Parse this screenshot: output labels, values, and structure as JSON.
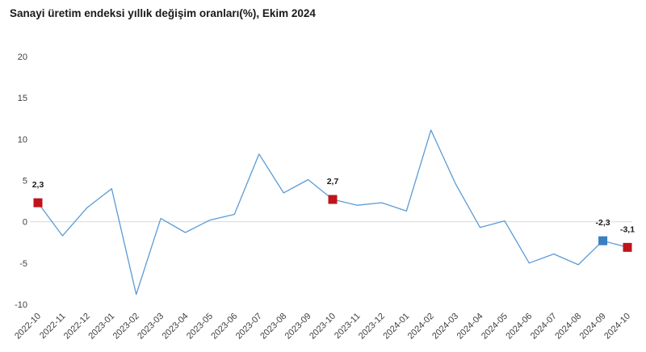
{
  "chart_data": {
    "type": "line",
    "title": "Sanayi üretim endeksi yıllık değişim oranları(%), Ekim 2024",
    "xlabel": "",
    "ylabel": "",
    "ylim": [
      -10,
      20
    ],
    "yticks": [
      -10,
      -5,
      0,
      5,
      10,
      15,
      20
    ],
    "grid": false,
    "legend": "none",
    "line_color": "#5b9bd5",
    "categories": [
      "2022-10",
      "2022-11",
      "2022-12",
      "2023-01",
      "2023-02",
      "2023-03",
      "2023-04",
      "2023-05",
      "2023-06",
      "2023-07",
      "2023-08",
      "2023-09",
      "2023-10",
      "2023-11",
      "2023-12",
      "2024-01",
      "2024-02",
      "2024-03",
      "2024-04",
      "2024-05",
      "2024-06",
      "2024-07",
      "2024-08",
      "2024-09",
      "2024-10"
    ],
    "series": [
      {
        "values": [
          2.3,
          -1.7,
          1.7,
          4.0,
          -8.8,
          0.4,
          -1.3,
          0.2,
          0.9,
          8.2,
          3.5,
          5.1,
          2.7,
          2.0,
          2.3,
          1.3,
          11.1,
          4.6,
          -0.7,
          0.1,
          -5.0,
          -3.9,
          -5.2,
          -2.3,
          -3.1
        ]
      }
    ],
    "markers": [
      {
        "index": 0,
        "label": "2,3",
        "color": "#c0131b"
      },
      {
        "index": 12,
        "label": "2,7",
        "color": "#c0131b"
      },
      {
        "index": 23,
        "label": "-2,3",
        "color": "#3a7fc1"
      },
      {
        "index": 24,
        "label": "-3,1",
        "color": "#c0131b"
      }
    ]
  }
}
